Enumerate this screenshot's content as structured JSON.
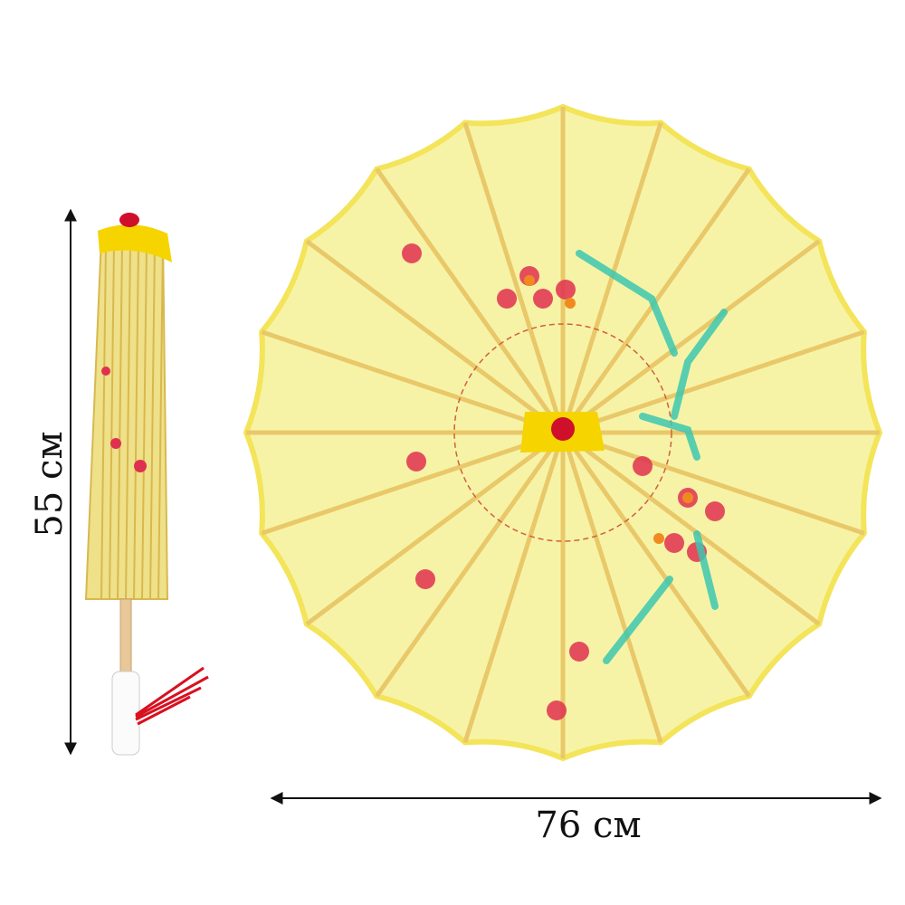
{
  "dimensions": {
    "closed_height": "55 см",
    "open_width": "76 см"
  },
  "colors": {
    "canopy": "#f7f3a6",
    "canopy_edge": "#f3e45a",
    "rib": "#e9c86a",
    "hub": "#f5d400",
    "tip": "#d0102a",
    "blossom": "#e0304f",
    "leaf": "#3cc7b0",
    "tassel": "#d81020"
  }
}
